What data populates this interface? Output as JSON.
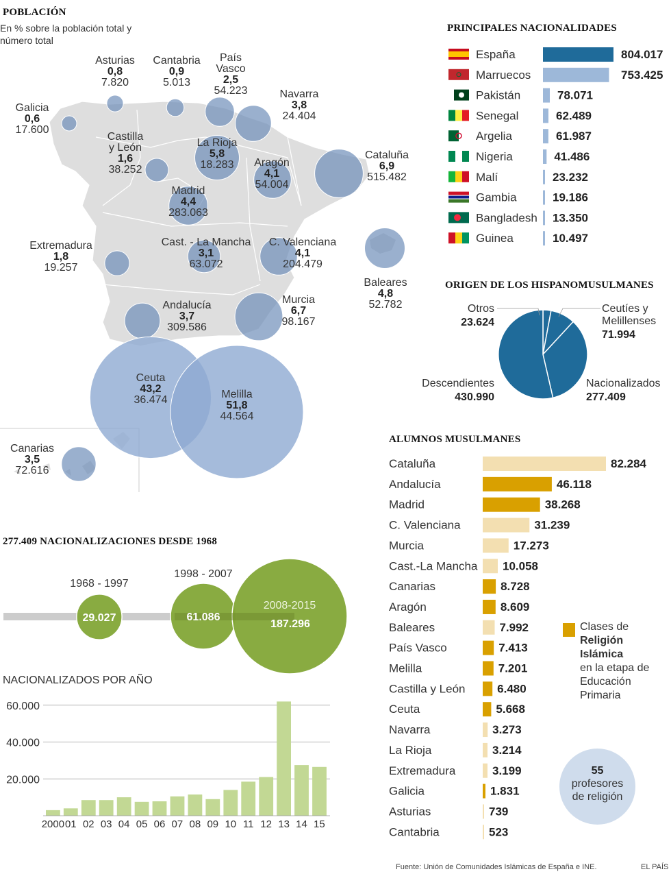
{
  "poblacion": {
    "title": "POBLACIÓN",
    "subtitle_line1": "En % sobre la población total y",
    "subtitle_line2": "número total",
    "regions": [
      {
        "name_lines": [
          "Asturias"
        ],
        "pct": "0,8",
        "total": "7.820",
        "value": 0.8
      },
      {
        "name_lines": [
          "Cantabria"
        ],
        "pct": "0,9",
        "total": "5.013",
        "value": 0.9
      },
      {
        "name_lines": [
          "País",
          "Vasco"
        ],
        "pct": "2,5",
        "total": "54.223",
        "value": 2.5
      },
      {
        "name_lines": [
          "Navarra"
        ],
        "pct": "3,8",
        "total": "24.404",
        "value": 3.8
      },
      {
        "name_lines": [
          "Galicia"
        ],
        "pct": "0,6",
        "total": "17.600",
        "value": 0.6
      },
      {
        "name_lines": [
          "Castilla",
          "y León"
        ],
        "pct": "1,6",
        "total": "38.252",
        "value": 1.6
      },
      {
        "name_lines": [
          "La Rioja"
        ],
        "pct": "5,8",
        "total": "18.283",
        "value": 5.8
      },
      {
        "name_lines": [
          "Aragón"
        ],
        "pct": "4,1",
        "total": "54.004",
        "value": 4.1
      },
      {
        "name_lines": [
          "Cataluña"
        ],
        "pct": "6,9",
        "total": "515.482",
        "value": 6.9
      },
      {
        "name_lines": [
          "Madrid"
        ],
        "pct": "4,4",
        "total": "283.063",
        "value": 4.4
      },
      {
        "name_lines": [
          "Extremadura"
        ],
        "pct": "1,8",
        "total": "19.257",
        "value": 1.8
      },
      {
        "name_lines": [
          "Cast. - La Mancha"
        ],
        "pct": "3,1",
        "total": "63.072",
        "value": 3.1
      },
      {
        "name_lines": [
          "C. Valenciana"
        ],
        "pct": "4,1",
        "total": "204.479",
        "value": 4.1
      },
      {
        "name_lines": [
          "Baleares"
        ],
        "pct": "4,8",
        "total": "52.782",
        "value": 4.8
      },
      {
        "name_lines": [
          "Andalucía"
        ],
        "pct": "3,7",
        "total": "309.586",
        "value": 3.7
      },
      {
        "name_lines": [
          "Murcia"
        ],
        "pct": "6,7",
        "total": "98.167",
        "value": 6.7
      },
      {
        "name_lines": [
          "Ceuta"
        ],
        "pct": "43,2",
        "total": "36.474",
        "value": 43.2
      },
      {
        "name_lines": [
          "Melilla"
        ],
        "pct": "51,8",
        "total": "44.564",
        "value": 51.8
      },
      {
        "name_lines": [
          "Canarias"
        ],
        "pct": "3,5",
        "total": "72.616",
        "value": 3.5
      }
    ]
  },
  "nacionalidades": {
    "title": "PRINCIPALES NACIONALIDADES",
    "items": [
      {
        "label": "España",
        "value": 804017,
        "display": "804.017",
        "flag": "spain-flag"
      },
      {
        "label": "Marruecos",
        "value": 753425,
        "display": "753.425",
        "flag": "morocco-flag"
      },
      {
        "label": "Pakistán",
        "value": 78071,
        "display": "78.071",
        "flag": "pakistan-flag"
      },
      {
        "label": "Senegal",
        "value": 62489,
        "display": "62.489",
        "flag": "senegal-flag"
      },
      {
        "label": "Argelia",
        "value": 61987,
        "display": "61.987",
        "flag": "algeria-flag"
      },
      {
        "label": "Nigeria",
        "value": 41486,
        "display": "41.486",
        "flag": "nigeria-flag"
      },
      {
        "label": "Malí",
        "value": 23232,
        "display": "23.232",
        "flag": "mali-flag"
      },
      {
        "label": "Gambia",
        "value": 19186,
        "display": "19.186",
        "flag": "gambia-flag"
      },
      {
        "label": "Bangladesh",
        "value": 13350,
        "display": "13.350",
        "flag": "bangladesh-flag"
      },
      {
        "label": "Guinea",
        "value": 10497,
        "display": "10.497",
        "flag": "guinea-flag"
      }
    ]
  },
  "origen": {
    "title": "ORIGEN DE LOS HISPANOMUSULMANES",
    "slices": [
      {
        "label_lines": [
          "Otros"
        ],
        "display": "23.624",
        "value": 23624
      },
      {
        "label_lines": [
          "Ceutíes y",
          "Melillenses"
        ],
        "display": "71.994",
        "value": 71994
      },
      {
        "label_lines": [
          "Nacionalizados"
        ],
        "display": "277.409",
        "value": 277409
      },
      {
        "label_lines": [
          "Descendientes"
        ],
        "display": "430.990",
        "value": 430990
      }
    ]
  },
  "alumnos": {
    "title": "ALUMNOS MUSULMANES",
    "items": [
      {
        "label": "Cataluña",
        "value": 82284,
        "display": "82.284",
        "religion": false
      },
      {
        "label": "Andalucía",
        "value": 46118,
        "display": "46.118",
        "religion": true
      },
      {
        "label": "Madrid",
        "value": 38268,
        "display": "38.268",
        "religion": true
      },
      {
        "label": "C. Valenciana",
        "value": 31239,
        "display": "31.239",
        "religion": false
      },
      {
        "label": "Murcia",
        "value": 17273,
        "display": "17.273",
        "religion": false
      },
      {
        "label": "Cast.-La Mancha",
        "value": 10058,
        "display": "10.058",
        "religion": false
      },
      {
        "label": "Canarias",
        "value": 8728,
        "display": "8.728",
        "religion": true
      },
      {
        "label": "Aragón",
        "value": 8609,
        "display": "8.609",
        "religion": true
      },
      {
        "label": "Baleares",
        "value": 7992,
        "display": "7.992",
        "religion": false
      },
      {
        "label": "País Vasco",
        "value": 7413,
        "display": "7.413",
        "religion": true
      },
      {
        "label": "Melilla",
        "value": 7201,
        "display": "7.201",
        "religion": true
      },
      {
        "label": "Castilla y León",
        "value": 6480,
        "display": "6.480",
        "religion": true
      },
      {
        "label": "Ceuta",
        "value": 5668,
        "display": "5.668",
        "religion": true
      },
      {
        "label": "Navarra",
        "value": 3273,
        "display": "3.273",
        "religion": false
      },
      {
        "label": "La Rioja",
        "value": 3214,
        "display": "3.214",
        "religion": false
      },
      {
        "label": "Extremadura",
        "value": 3199,
        "display": "3.199",
        "religion": false
      },
      {
        "label": "Galicia",
        "value": 1831,
        "display": "1.831",
        "religion": true
      },
      {
        "label": "Asturias",
        "value": 739,
        "display": "739",
        "religion": false
      },
      {
        "label": "Cantabria",
        "value": 523,
        "display": "523",
        "religion": false
      }
    ],
    "legend_lines": [
      "Clases de",
      "Religión",
      "Islámica",
      "en la etapa de",
      "Educación",
      "Primaria"
    ],
    "profesores_number": "55",
    "profesores_line1": "profesores",
    "profesores_line2": "de religión"
  },
  "nacionalizaciones": {
    "title": "277.409 NACIONALIZACIONES DESDE 1968",
    "periods": [
      {
        "label": "1968 - 1997",
        "value": 29027,
        "display": "29.027"
      },
      {
        "label": "1998 - 2007",
        "value": 61086,
        "display": "61.086"
      },
      {
        "label": "2008-2015",
        "value": 187296,
        "display": "187.296"
      }
    ]
  },
  "chart_data": [
    {
      "type": "bar",
      "title": "NACIONALIZADOS POR AÑO",
      "categories": [
        "2000",
        "01",
        "02",
        "03",
        "04",
        "05",
        "06",
        "07",
        "08",
        "09",
        "10",
        "11",
        "12",
        "13",
        "14",
        "15"
      ],
      "values": [
        3000,
        4000,
        8500,
        8500,
        10000,
        7500,
        7800,
        10500,
        11500,
        9000,
        14000,
        18500,
        21000,
        62000,
        27500,
        26500
      ],
      "ytick_labels": [
        "20.000",
        "40.000",
        "60.000"
      ],
      "yticks": [
        20000,
        40000,
        60000
      ],
      "ylim": [
        0,
        64000
      ],
      "xlabel": "",
      "ylabel": "",
      "color": "#c2d894"
    },
    {
      "type": "bar",
      "title": "PRINCIPALES NACIONALIDADES",
      "categories": [
        "España",
        "Marruecos",
        "Pakistán",
        "Senegal",
        "Argelia",
        "Nigeria",
        "Malí",
        "Gambia",
        "Bangladesh",
        "Guinea"
      ],
      "values": [
        804017,
        753425,
        78071,
        62489,
        61987,
        41486,
        23232,
        19186,
        13350,
        10497
      ]
    },
    {
      "type": "pie",
      "title": "ORIGEN DE LOS HISPANOMUSULMANES",
      "categories": [
        "Otros",
        "Ceutíes y Melillenses",
        "Nacionalizados",
        "Descendientes"
      ],
      "values": [
        23624,
        71994,
        277409,
        430990
      ]
    },
    {
      "type": "bar",
      "title": "ALUMNOS MUSULMANES",
      "categories": [
        "Cataluña",
        "Andalucía",
        "Madrid",
        "C. Valenciana",
        "Murcia",
        "Cast.-La Mancha",
        "Canarias",
        "Aragón",
        "Baleares",
        "País Vasco",
        "Melilla",
        "Castilla y León",
        "Ceuta",
        "Navarra",
        "La Rioja",
        "Extremadura",
        "Galicia",
        "Asturias",
        "Cantabria"
      ],
      "values": [
        82284,
        46118,
        38268,
        31239,
        17273,
        10058,
        8728,
        8609,
        7992,
        7413,
        7201,
        6480,
        5668,
        3273,
        3214,
        3199,
        1831,
        739,
        523
      ]
    }
  ],
  "colors": {
    "dark_blue": "#1f6b9a",
    "light_blue": "#9db8d9",
    "map_gray": "#dedede",
    "bubble_blue": "#6f8fb9",
    "green": "#83a637",
    "green_light": "#c2d894",
    "gold": "#d9a000",
    "wheat": "#f3dfb1"
  },
  "footer": {
    "source": "Fuente: Unión de Comunidades Islámicas de España e INE.",
    "brand": "EL PAÍS"
  }
}
